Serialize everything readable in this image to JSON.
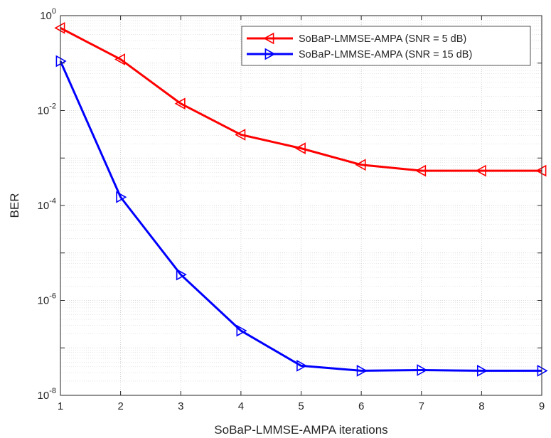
{
  "chart_data": {
    "type": "line",
    "xlabel": "SoBaP-LMMSE-AMPA iterations",
    "ylabel": "BER",
    "x": [
      1,
      2,
      3,
      4,
      5,
      6,
      7,
      8,
      9
    ],
    "xlim": [
      1,
      9
    ],
    "ylim": [
      1e-08,
      1
    ],
    "yscale": "log",
    "grid": true,
    "minor_grid": true,
    "legend_position": "top-right",
    "x_ticks": [
      "1",
      "2",
      "3",
      "4",
      "5",
      "6",
      "7",
      "8",
      "9"
    ],
    "y_ticks": [
      {
        "base": "10",
        "exp": "0",
        "value": 1
      },
      {
        "base": "10",
        "exp": "-2",
        "value": 0.01
      },
      {
        "base": "10",
        "exp": "-4",
        "value": 0.0001
      },
      {
        "base": "10",
        "exp": "-6",
        "value": 1e-06
      },
      {
        "base": "10",
        "exp": "-8",
        "value": 1e-08
      }
    ],
    "series": [
      {
        "name": "SoBaP-LMMSE-AMPA (SNR = 5 dB)",
        "color": "#ff0000",
        "marker": "triangle-left",
        "values": [
          0.55,
          0.12,
          0.014,
          0.0031,
          0.0016,
          0.00072,
          0.00054,
          0.00054,
          0.00054
        ]
      },
      {
        "name": "SoBaP-LMMSE-AMPA (SNR = 15 dB)",
        "color": "#0000ff",
        "marker": "triangle-right",
        "values": [
          0.11,
          0.00015,
          3.5e-06,
          2.3e-07,
          4.2e-08,
          3.3e-08,
          3.4e-08,
          3.3e-08,
          3.3e-08
        ]
      }
    ]
  }
}
